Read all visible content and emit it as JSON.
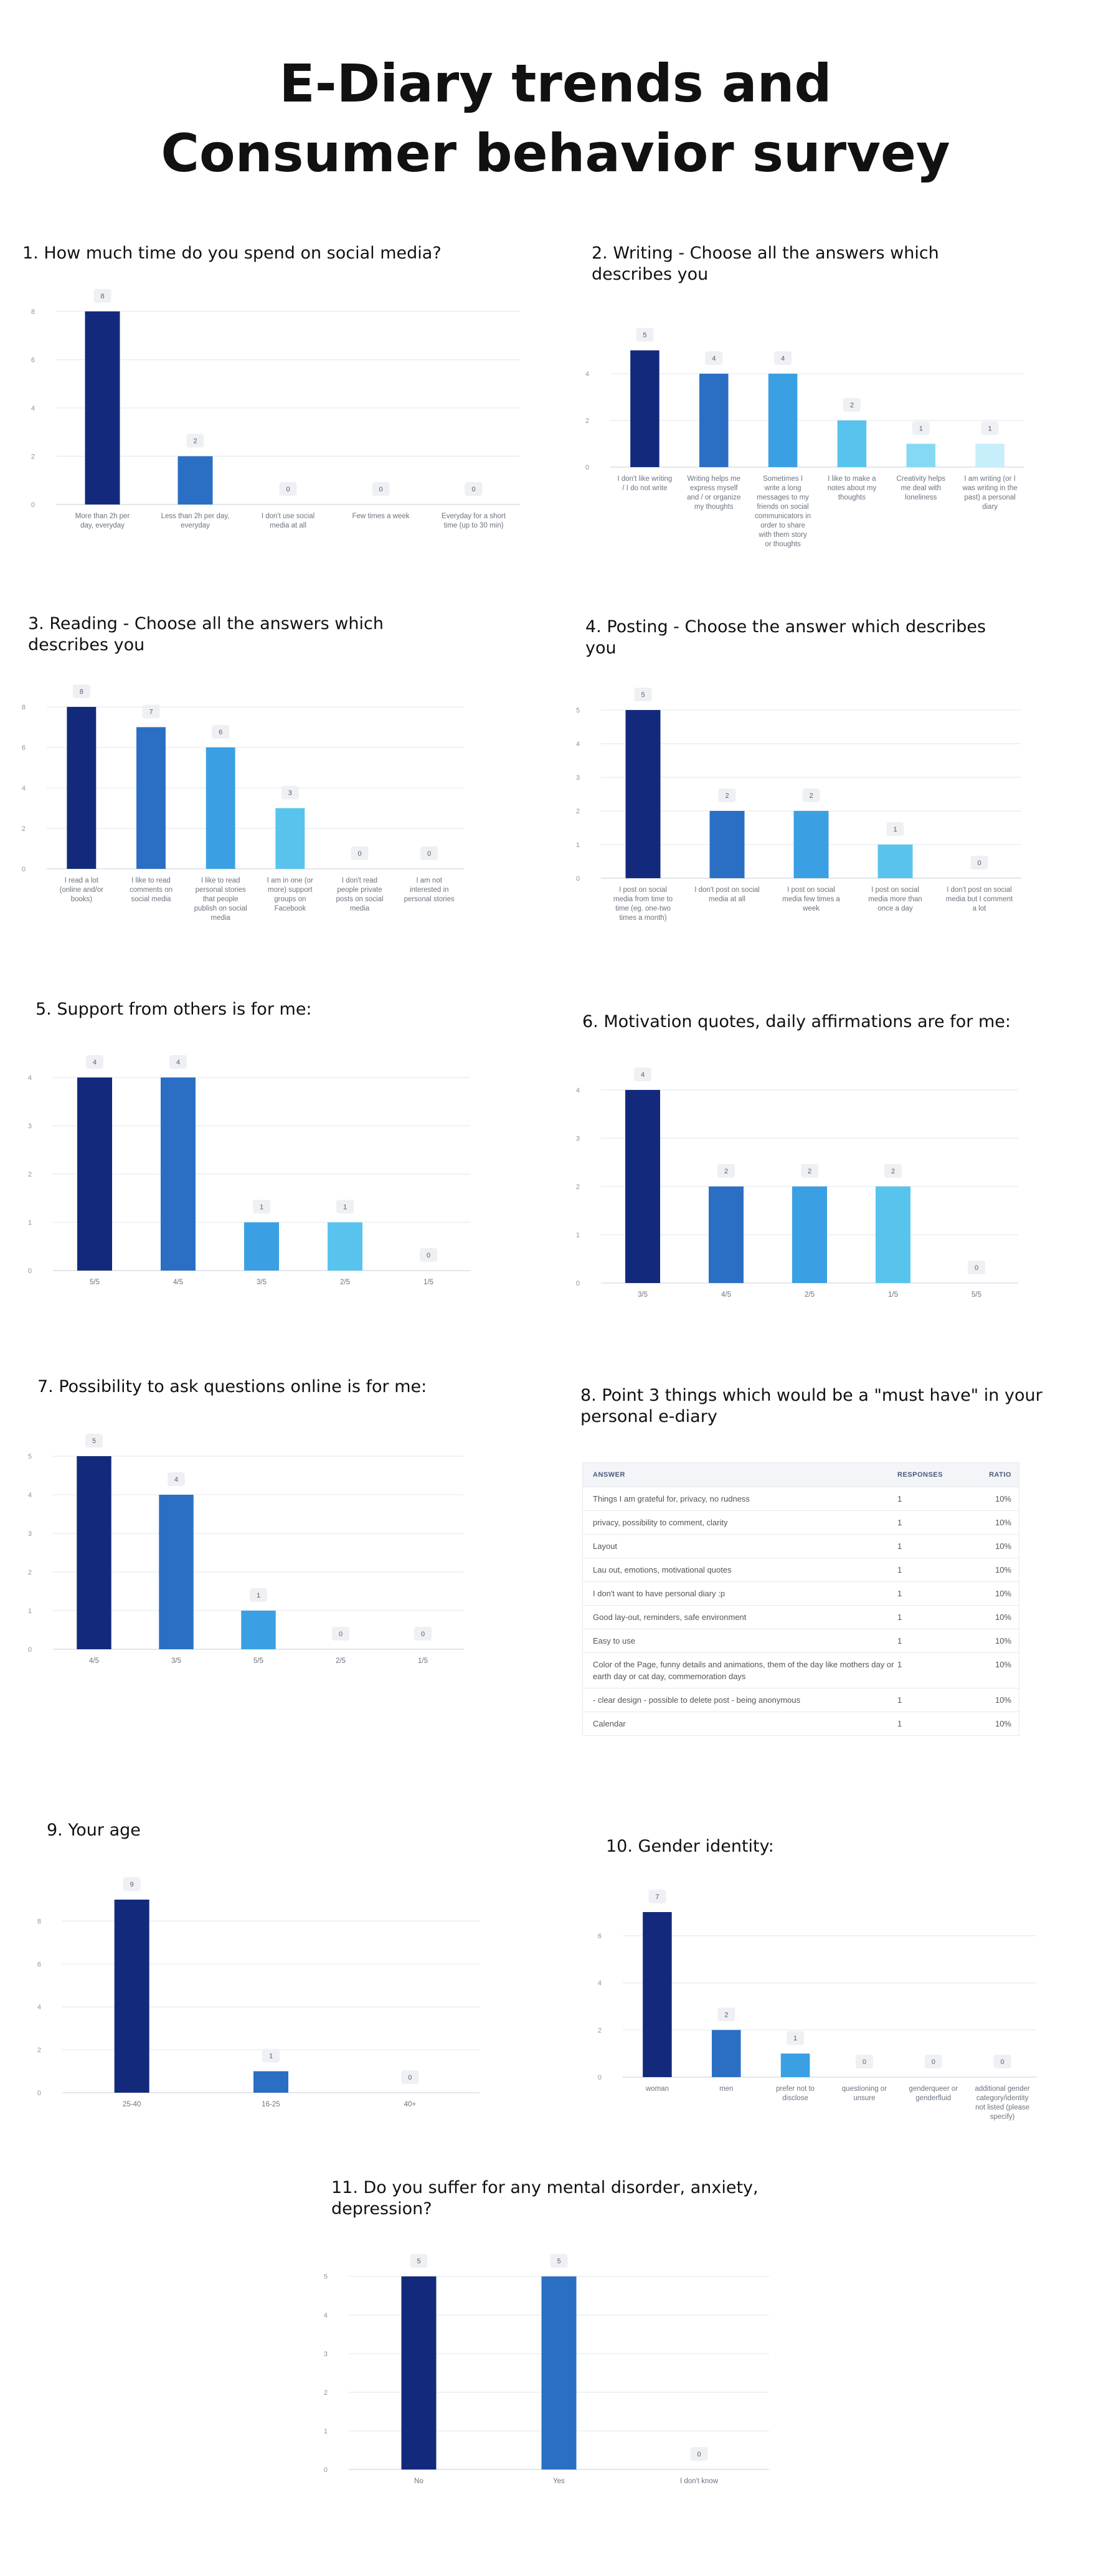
{
  "title_line1": "E-Diary trends and",
  "title_line2": "Consumer behavior survey",
  "colors": [
    "#132a7c",
    "#2a6fc4",
    "#3aa0e3",
    "#58c4ee",
    "#86d9f3",
    "#c7eefb"
  ],
  "chart_data": [
    {
      "type": "bar",
      "title": "1. How much time do you spend on social media?",
      "categories": [
        [
          "More than 2h per",
          "day, everyday"
        ],
        [
          "Less than 2h per day,",
          "everyday"
        ],
        [
          "I don't use social",
          "media at all"
        ],
        [
          "Few times a week"
        ],
        [
          "Everyday for a short",
          "time (up to 30 min)"
        ]
      ],
      "values": [
        8,
        2,
        0,
        0,
        0
      ],
      "ylim": [
        0,
        8
      ],
      "yticks": [
        "0",
        "2",
        "4",
        "6",
        "8"
      ]
    },
    {
      "type": "bar",
      "title": "2. Writing - Choose all the answers which describes you",
      "categories": [
        [
          "I don't like writing",
          "/ I do not write"
        ],
        [
          "Writing helps me",
          "express myself",
          "and / or organize",
          "my thoughts"
        ],
        [
          "Sometimes I",
          "write a long",
          "messages to my",
          "friends on social",
          "communicators in",
          "order to share",
          "with them story",
          "or thoughts"
        ],
        [
          "I like to make a",
          "notes about my",
          "thoughts"
        ],
        [
          "Creativity helps",
          "me deal with",
          "loneliness"
        ],
        [
          "I am writing (or I",
          "was writing in the",
          "past) a personal",
          "diary"
        ]
      ],
      "values": [
        5,
        4,
        4,
        2,
        1,
        1
      ],
      "ylim": [
        0,
        6
      ],
      "yticks": [
        "0",
        "2",
        "4"
      ]
    },
    {
      "type": "bar",
      "title": "3. Reading - Choose all the answers which describes you",
      "categories": [
        [
          "I read a lot",
          "(online and/or",
          "books)"
        ],
        [
          "I like to read",
          "comments on",
          "social media"
        ],
        [
          "I like to read",
          "personal stories",
          "that people",
          "publish on social",
          "media"
        ],
        [
          "I am in one (or",
          "more) support",
          "groups on",
          "Facebook"
        ],
        [
          "I don't read",
          "people private",
          "posts on social",
          "media"
        ],
        [
          "I am not",
          "interested in",
          "personal stories"
        ]
      ],
      "values": [
        8,
        7,
        6,
        3,
        0,
        0
      ],
      "ylim": [
        0,
        8
      ],
      "yticks": [
        "0",
        "2",
        "4",
        "6",
        "8"
      ]
    },
    {
      "type": "bar",
      "title": "4. Posting - Choose the answer which describes you",
      "categories": [
        [
          "I post on social",
          "media from time to",
          "time (eg. one-two",
          "times a month)"
        ],
        [
          "I don't post on social",
          "media at all"
        ],
        [
          "I post on social",
          "media few times a",
          "week"
        ],
        [
          "I post on social",
          "media more than",
          "once a day"
        ],
        [
          "I don't post on social",
          "media but I comment",
          "a lot"
        ]
      ],
      "values": [
        5,
        2,
        2,
        1,
        0
      ],
      "ylim": [
        0,
        5
      ],
      "yticks": [
        "0",
        "1",
        "2",
        "3",
        "4",
        "5"
      ]
    },
    {
      "type": "bar",
      "title": "5. Support from others is for me:",
      "categories": [
        [
          "5/5"
        ],
        [
          "4/5"
        ],
        [
          "3/5"
        ],
        [
          "2/5"
        ],
        [
          "1/5"
        ]
      ],
      "values": [
        4,
        4,
        1,
        1,
        0
      ],
      "ylim": [
        0,
        4
      ],
      "yticks": [
        "0",
        "1",
        "2",
        "3",
        "4"
      ]
    },
    {
      "type": "bar",
      "title": "6. Motivation quotes, daily affirmations are for me:",
      "categories": [
        [
          "3/5"
        ],
        [
          "4/5"
        ],
        [
          "2/5"
        ],
        [
          "1/5"
        ],
        [
          "5/5"
        ]
      ],
      "values": [
        4,
        2,
        2,
        2,
        0
      ],
      "ylim": [
        0,
        4
      ],
      "yticks": [
        "0",
        "1",
        "2",
        "3",
        "4"
      ]
    },
    {
      "type": "bar",
      "title": "7. Possibility to ask questions online is for me:",
      "categories": [
        [
          "4/5"
        ],
        [
          "3/5"
        ],
        [
          "5/5"
        ],
        [
          "2/5"
        ],
        [
          "1/5"
        ]
      ],
      "values": [
        5,
        4,
        1,
        0,
        0
      ],
      "ylim": [
        0,
        5
      ],
      "yticks": [
        "0",
        "1",
        "2",
        "3",
        "4",
        "5"
      ]
    },
    {
      "type": "table",
      "title": "8. Point 3 things which would be a \"must have\" in your personal e-diary",
      "columns": [
        "ANSWER",
        "RESPONSES",
        "RATIO"
      ],
      "rows": [
        [
          "Things I am grateful for, privacy, no rudness",
          "1",
          "10%"
        ],
        [
          "privacy, possibility to comment, clarity",
          "1",
          "10%"
        ],
        [
          "Layout",
          "1",
          "10%"
        ],
        [
          "Lau out, emotions, motivational quotes",
          "1",
          "10%"
        ],
        [
          "I don't want to have personal diary :p",
          "1",
          "10%"
        ],
        [
          "Good lay-out, reminders, safe environment",
          "1",
          "10%"
        ],
        [
          "Easy to use",
          "1",
          "10%"
        ],
        [
          "Color of the Page, funny details and animations, them of the day like mothers day or earth day or cat day, commemoration days",
          "1",
          "10%"
        ],
        [
          "- clear design - possible to delete post - being anonymous",
          "1",
          "10%"
        ],
        [
          "Calendar",
          "1",
          "10%"
        ]
      ]
    },
    {
      "type": "bar",
      "title": "9. Your age",
      "categories": [
        [
          "25-40"
        ],
        [
          "16-25"
        ],
        [
          "40+"
        ]
      ],
      "values": [
        9,
        1,
        0
      ],
      "ylim": [
        0,
        9
      ],
      "yticks": [
        "0",
        "2",
        "4",
        "6",
        "8"
      ]
    },
    {
      "type": "bar",
      "title": "10. Gender identity:",
      "categories": [
        [
          "woman"
        ],
        [
          "men"
        ],
        [
          "prefer not to",
          "disclose"
        ],
        [
          "questioning or",
          "unsure"
        ],
        [
          "genderqueer or",
          "genderfluid"
        ],
        [
          "additional gender",
          "category/identity",
          "not listed (please",
          "specify)"
        ]
      ],
      "values": [
        7,
        2,
        1,
        0,
        0,
        0
      ],
      "ylim": [
        0,
        7
      ],
      "yticks": [
        "0",
        "2",
        "4",
        "6"
      ]
    },
    {
      "type": "bar",
      "title": "11. Do you suffer for any mental disorder, anxiety, depression?",
      "categories": [
        [
          "No"
        ],
        [
          "Yes"
        ],
        [
          "I don't know"
        ]
      ],
      "values": [
        5,
        5,
        0
      ],
      "ylim": [
        0,
        5
      ],
      "yticks": [
        "0",
        "1",
        "2",
        "3",
        "4",
        "5"
      ]
    }
  ]
}
